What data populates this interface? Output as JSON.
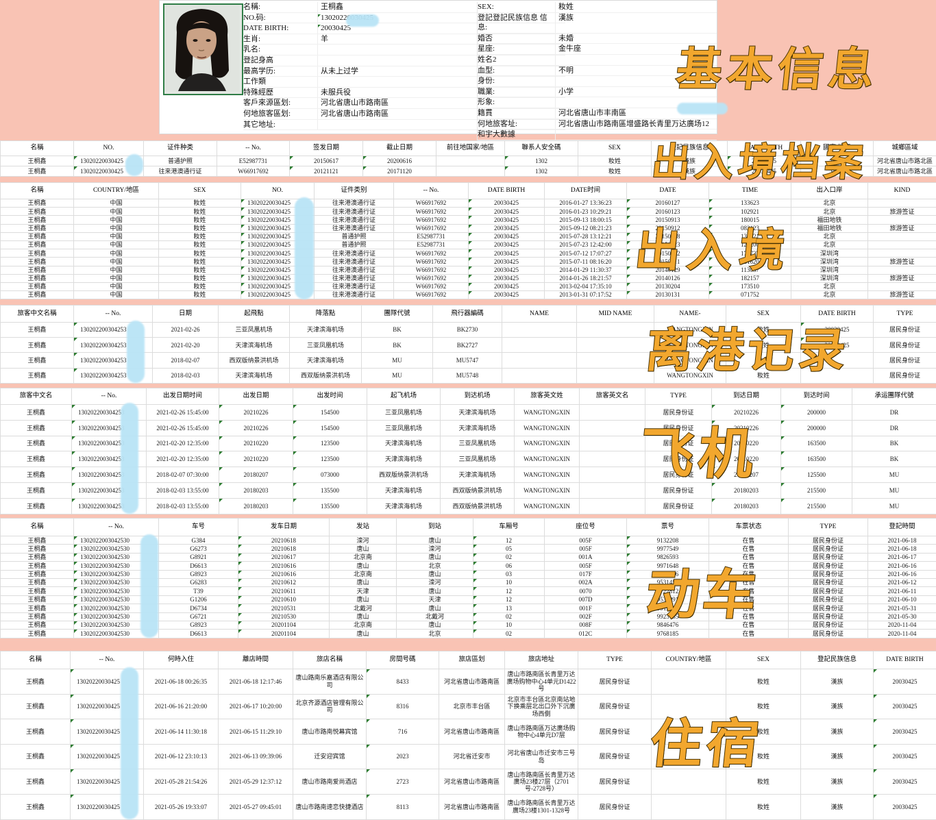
{
  "section_labels": {
    "basic": "基本信息",
    "archive": "出入境档案",
    "entry_exit": "出入境",
    "departure": "离港记录",
    "flight": "飞机",
    "train": "动车",
    "hotel": "住宿"
  },
  "profile": {
    "left_fields": [
      {
        "label": "名稱:",
        "value": "王桐鑫"
      },
      {
        "label": "NO.码:",
        "value": "13020220030425",
        "green": true,
        "redacted": true
      },
      {
        "label": "DATE BIRTH:",
        "value": "20030425",
        "green": true
      },
      {
        "label": "生肖:",
        "value": "羊"
      },
      {
        "label": "乳名:",
        "value": ""
      },
      {
        "label": "登記身高",
        "value": ""
      },
      {
        "label": "最高学历:",
        "value": "从未上过学"
      },
      {
        "label": "工作類",
        "value": ""
      },
      {
        "label": "特殊經歷",
        "value": "未服兵役"
      },
      {
        "label": "客戶來源區划:",
        "value": "河北省唐山市路南區"
      },
      {
        "label": "何地旅客區划:",
        "value": "河北省唐山市路南區"
      },
      {
        "label": "其它地址:",
        "value": ""
      }
    ],
    "right_fields": [
      {
        "label": "SEX:",
        "value": "籹姓"
      },
      {
        "label": "登記登記民族信息 信息:",
        "value": "漢族"
      },
      {
        "label": "婚否",
        "value": "未婚"
      },
      {
        "label": "星座:",
        "value": "金牛座"
      },
      {
        "label": "姓名2",
        "value": ""
      },
      {
        "label": "血型:",
        "value": "不明"
      },
      {
        "label": "身份:",
        "value": ""
      },
      {
        "label": "職業:",
        "value": "小学"
      },
      {
        "label": "形象:",
        "value": ""
      },
      {
        "label": "籍貫",
        "value": "河北省唐山市丰南區"
      },
      {
        "label": "何地旅客址:",
        "value": "河北省唐山市路南區增盛路长青里万达廣场12",
        "redacted": true
      },
      {
        "label": "和宇大數據",
        "value": ""
      }
    ]
  },
  "tables": [
    {
      "name": "exit-entry-archive",
      "columns": [
        "名稱",
        "NO.",
        "证件种类",
        "-- No.",
        "签发日期",
        "截止日期",
        "前往地国家/地區",
        "聯系人安全碼",
        "SEX",
        "登記民族信息",
        "DATE BIRTH",
        "國家/地區",
        "城鄉區域"
      ],
      "rows": [
        [
          "王桐鑫",
          "13020220030425",
          "普通护照",
          "E52987731",
          "20150617",
          "20200616",
          "",
          "1302",
          "籹姓",
          "漢族",
          "20030425",
          "中国",
          "河北省唐山市路北區"
        ],
        [
          "王桐鑫",
          "13020220030425",
          "往来港澳通行证",
          "W66917692",
          "20121121",
          "20171120",
          "",
          "1302",
          "籹姓",
          "漢族",
          "20030425",
          "中国",
          "河北省唐山市路北區"
        ]
      ]
    },
    {
      "name": "entry-exit",
      "columns": [
        "名稱",
        "COUNTRY/地區",
        "SEX",
        "NO.",
        "证件类别",
        "-- No.",
        "DATE BIRTH",
        "DATE时间",
        "DATE",
        "TIME",
        "出入口岸",
        "KIND"
      ],
      "rows": [
        [
          "王桐鑫",
          "中国",
          "籹姓",
          "13020220030425",
          "往来港澳通行证",
          "W66917692",
          "20030425",
          "2016-01-27 13:36:23",
          "20160127",
          "133623",
          "北京",
          ""
        ],
        [
          "王桐鑫",
          "中国",
          "籹姓",
          "13020220030425",
          "往来港澳通行证",
          "W66917692",
          "20030425",
          "2016-01-23 10:29:21",
          "20160123",
          "102921",
          "北京",
          "旅游签证"
        ],
        [
          "王桐鑫",
          "中国",
          "籹姓",
          "13020220030425",
          "往来港澳通行证",
          "W66917692",
          "20030425",
          "2015-09-13 18:00:15",
          "20150913",
          "180015",
          "福田地铁",
          ""
        ],
        [
          "王桐鑫",
          "中国",
          "籹姓",
          "13020220030425",
          "往来港澳通行证",
          "W66917692",
          "20030425",
          "2015-09-12 08:21:23",
          "20150912",
          "082123",
          "福田地铁",
          "旅游签证"
        ],
        [
          "王桐鑫",
          "中国",
          "籹姓",
          "13020220030425",
          "普通护照",
          "E52987731",
          "20030425",
          "2015-07-28 13:12:21",
          "20150728",
          "131221",
          "北京",
          ""
        ],
        [
          "王桐鑫",
          "中国",
          "籹姓",
          "13020220030425",
          "普通护照",
          "E52987731",
          "20030425",
          "2015-07-23 12:42:00",
          "20150723",
          "124200",
          "北京",
          ""
        ],
        [
          "王桐鑫",
          "中国",
          "籹姓",
          "13020220030425",
          "往来港澳通行证",
          "W66917692",
          "20030425",
          "2015-07-12 17:07:27",
          "20150712",
          "170727",
          "深圳湾",
          ""
        ],
        [
          "王桐鑫",
          "中国",
          "籹姓",
          "13020220030425",
          "往来港澳通行证",
          "W66917692",
          "20030425",
          "2015-07-11 08:16:20",
          "20150711",
          "081620",
          "深圳湾",
          "旅游签证"
        ],
        [
          "王桐鑫",
          "中国",
          "籹姓",
          "13020220030425",
          "往来港澳通行证",
          "W66917692",
          "20030425",
          "2014-01-29 11:30:37",
          "20140129",
          "113037",
          "深圳湾",
          ""
        ],
        [
          "王桐鑫",
          "中国",
          "籹姓",
          "13020220030425",
          "往来港澳通行证",
          "W66917692",
          "20030425",
          "2014-01-26 18:21:57",
          "20140126",
          "182157",
          "深圳湾",
          "旅游签证"
        ],
        [
          "王桐鑫",
          "中国",
          "籹姓",
          "13020220030425",
          "往来港澳通行证",
          "W66917692",
          "20030425",
          "2013-02-04 17:35:10",
          "20130204",
          "173510",
          "北京",
          ""
        ],
        [
          "王桐鑫",
          "中国",
          "籹姓",
          "13020220030425",
          "往来港澳通行证",
          "W66917692",
          "20030425",
          "2013-01-31 07:17:52",
          "20130131",
          "071752",
          "北京",
          "旅游签证"
        ]
      ]
    },
    {
      "name": "departure-records",
      "columns": [
        "旅客中文名稱",
        "-- No.",
        "日期",
        "起飛點",
        "降落點",
        "團隊代號",
        "飛行器編碼",
        "NAME",
        "MID NAME",
        "NAME-",
        "SEX",
        "DATE BIRTH",
        "TYPE"
      ],
      "rows": [
        [
          "王桐鑫",
          "130202200304253",
          "2021-02-26",
          "三亚凤凰机场",
          "天津滨海机场",
          "BK",
          "BK2730",
          "",
          "",
          "WANGTONGXIN",
          "籹姓",
          "20030425",
          "居民身份证"
        ],
        [
          "王桐鑫",
          "130202200304253",
          "2021-02-20",
          "天津滨海机场",
          "三亚凤凰机场",
          "BK",
          "BK2727",
          "",
          "",
          "WANGTONGXIN",
          "籹姓",
          "20030425",
          "居民身份证"
        ],
        [
          "王桐鑫",
          "130202200304253",
          "2018-02-07",
          "西双版纳景洪机场",
          "天津滨海机场",
          "MU",
          "MU5747",
          "",
          "",
          "WANGTONGXIN",
          "籹姓",
          "",
          "居民身份证"
        ],
        [
          "王桐鑫",
          "130202200304253",
          "2018-02-03",
          "天津滨海机场",
          "西双版纳景洪机场",
          "MU",
          "MU5748",
          "",
          "",
          "WANGTONGXIN",
          "籹姓",
          "",
          "居民身份证"
        ]
      ]
    },
    {
      "name": "flights",
      "columns": [
        "旅客中文名",
        "-- No.",
        "出发日期时间",
        "出发日期",
        "出发时间",
        "起飞机场",
        "到达机场",
        "旅客英文姓",
        "旅客英文名",
        "TYPE",
        "到达日期",
        "到达时间",
        "承运團隊代號"
      ],
      "rows": [
        [
          "王桐鑫",
          "130202200304253",
          "2021-02-26 15:45:00",
          "20210226",
          "154500",
          "三亚凤凰机场",
          "天津滨海机场",
          "WANGTONGXIN",
          "",
          "居民身份证",
          "20210226",
          "200000",
          "DR"
        ],
        [
          "王桐鑫",
          "130202200304253",
          "2021-02-26 15:45:00",
          "20210226",
          "154500",
          "三亚凤凰机场",
          "天津滨海机场",
          "WANGTONGXIN",
          "",
          "居民身份证",
          "20210226",
          "200000",
          "DR"
        ],
        [
          "王桐鑫",
          "130202200304253",
          "2021-02-20 12:35:00",
          "20210220",
          "123500",
          "天津滨海机场",
          "三亚凤凰机场",
          "WANGTONGXIN",
          "",
          "居民身份证",
          "20210220",
          "163500",
          "BK"
        ],
        [
          "王桐鑫",
          "130202200304253",
          "2021-02-20 12:35:00",
          "20210220",
          "123500",
          "天津滨海机场",
          "三亚凤凰机场",
          "WANGTONGXIN",
          "",
          "居民身份证",
          "20210220",
          "163500",
          "BK"
        ],
        [
          "王桐鑫",
          "130202200304253",
          "2018-02-07 07:30:00",
          "20180207",
          "073000",
          "西双版纳景洪机场",
          "天津滨海机场",
          "WANGTONGXIN",
          "",
          "居民身份证",
          "20180207",
          "125500",
          "MU"
        ],
        [
          "王桐鑫",
          "130202200304253",
          "2018-02-03 13:55:00",
          "20180203",
          "135500",
          "天津滨海机场",
          "西双版纳景洪机场",
          "WANGTONGXIN",
          "",
          "居民身份证",
          "20180203",
          "215500",
          "MU"
        ],
        [
          "王桐鑫",
          "130202200304253",
          "2018-02-03 13:55:00",
          "20180203",
          "135500",
          "天津滨海机场",
          "西双版纳景洪机场",
          "WANGTONGXIN",
          "",
          "居民身份证",
          "20180203",
          "215500",
          "MU"
        ]
      ]
    },
    {
      "name": "trains",
      "columns": [
        "名稱",
        "-- No.",
        "车号",
        "发车日期",
        "发站",
        "到站",
        "车厢号",
        "座位号",
        "票号",
        "车票状态",
        "TYPE",
        "登記時間"
      ],
      "rows": [
        [
          "王桐鑫",
          "1302022003042530",
          "G384",
          "20210618",
          "滦河",
          "唐山",
          "12",
          "005F",
          "9132208",
          "在售",
          "居民身份证",
          "2021-06-18"
        ],
        [
          "王桐鑫",
          "1302022003042530",
          "G6273",
          "20210618",
          "唐山",
          "滦河",
          "05",
          "005F",
          "9977549",
          "在售",
          "居民身份证",
          "2021-06-18"
        ],
        [
          "王桐鑫",
          "1302022003042530",
          "G8921",
          "20210617",
          "北京南",
          "唐山",
          "02",
          "001A",
          "9826593",
          "在售",
          "居民身份证",
          "2021-06-17"
        ],
        [
          "王桐鑫",
          "1302022003042530",
          "D6613",
          "20210616",
          "唐山",
          "北京",
          "06",
          "005F",
          "9971648",
          "在售",
          "居民身份证",
          "2021-06-16"
        ],
        [
          "王桐鑫",
          "1302022003042530",
          "G8923",
          "20210616",
          "北京南",
          "唐山",
          "03",
          "017F",
          "9804926",
          "在售",
          "居民身份证",
          "2021-06-16"
        ],
        [
          "王桐鑫",
          "1302022003042530",
          "G6283",
          "20210612",
          "唐山",
          "滦河",
          "10",
          "002A",
          "9531458",
          "在售",
          "居民身份证",
          "2021-06-12"
        ],
        [
          "王桐鑫",
          "1302022003042530",
          "T39",
          "20210611",
          "天津",
          "唐山",
          "12",
          "0070",
          "9722812",
          "在售",
          "居民身份证",
          "2021-06-11"
        ],
        [
          "王桐鑫",
          "1302022003042530",
          "G1206",
          "20210610",
          "唐山",
          "天津",
          "12",
          "007D",
          "9533991",
          "在售",
          "居民身份证",
          "2021-06-10"
        ],
        [
          "王桐鑫",
          "1302022003042530",
          "D6734",
          "20210531",
          "北戴河",
          "唐山",
          "13",
          "001F",
          "9912611",
          "在售",
          "居民身份证",
          "2021-05-31"
        ],
        [
          "王桐鑫",
          "1302022003042530",
          "G6721",
          "20210530",
          "唐山",
          "北戴河",
          "02",
          "002F",
          "9923735",
          "在售",
          "居民身份证",
          "2021-05-30"
        ],
        [
          "王桐鑫",
          "1302022003042530",
          "G8923",
          "20201104",
          "北京南",
          "唐山",
          "10",
          "008F",
          "9846476",
          "在售",
          "居民身份证",
          "2020-11-04"
        ],
        [
          "王桐鑫",
          "1302022003042530",
          "D6613",
          "20201104",
          "唐山",
          "北京",
          "02",
          "012C",
          "9768185",
          "在售",
          "居民身份证",
          "2020-11-04"
        ]
      ]
    },
    {
      "name": "hotels",
      "columns": [
        "名稱",
        "-- No.",
        "何時入住",
        "離店時間",
        "旅店名稱",
        "房間号碼",
        "旅店區划",
        "旅店地址",
        "TYPE",
        "COUNTRY/地區",
        "SEX",
        "登記民族信息",
        "DATE BIRTH"
      ],
      "rows": [
        [
          "王桐鑫",
          "13020220030425",
          "2021-06-18 00:26:35",
          "2021-06-18 12:17:46",
          "唐山路南乐嘉酒店有限公司",
          "8433",
          "河北省唐山市路南區",
          "唐山市路南區长青里万达廣场购物中心4单元D1422号",
          "居民身份证",
          "",
          "籹姓",
          "漢族",
          "20030425"
        ],
        [
          "王桐鑫",
          "13020220030425",
          "2021-06-16 21:20:00",
          "2021-06-17 10:20:00",
          "北京齐源酒店管理有限公司",
          "8316",
          "北京市丰台區",
          "北京市丰台區北京南站地下换乘层北出口外下沉廣场西側",
          "居民身份证",
          "",
          "籹姓",
          "漢族",
          "20030425"
        ],
        [
          "王桐鑫",
          "13020220030425",
          "2021-06-14 11:30:18",
          "2021-06-15 11:29:10",
          "唐山市路南悦幕宾馆",
          "716",
          "河北省唐山市路南區",
          "唐山市路南區万达廣场购物中心4单元D7层",
          "居民身份证",
          "",
          "籹姓",
          "漢族",
          "20030425"
        ],
        [
          "王桐鑫",
          "13020220030425",
          "2021-06-12 23:10:13",
          "2021-06-13 09:39:06",
          "迁安迎宾馆",
          "2023",
          "河北省迁安市",
          "河北省唐山市迁安市三号岛",
          "居民身份证",
          "",
          "籹姓",
          "漢族",
          "20030425"
        ],
        [
          "王桐鑫",
          "13020220030425",
          "2021-05-28 21:54:26",
          "2021-05-29 12:37:12",
          "唐山市路南爱尚酒店",
          "2723",
          "河北省唐山市路南區",
          "唐山市路南區长青里万达廣场23楼27层（2701号-2728号）",
          "居民身份证",
          "",
          "籹姓",
          "漢族",
          "20030425"
        ],
        [
          "王桐鑫",
          "13020220030425",
          "2021-05-26 19:33:07",
          "2021-05-27 09:45:01",
          "唐山市路南速恋快捷酒店",
          "8113",
          "河北省唐山市路南區",
          "唐山市路南區长青里万达廣场23楼1301-1328号",
          "居民身份证",
          "",
          "籹姓",
          "漢族",
          "20030425"
        ]
      ]
    }
  ]
}
